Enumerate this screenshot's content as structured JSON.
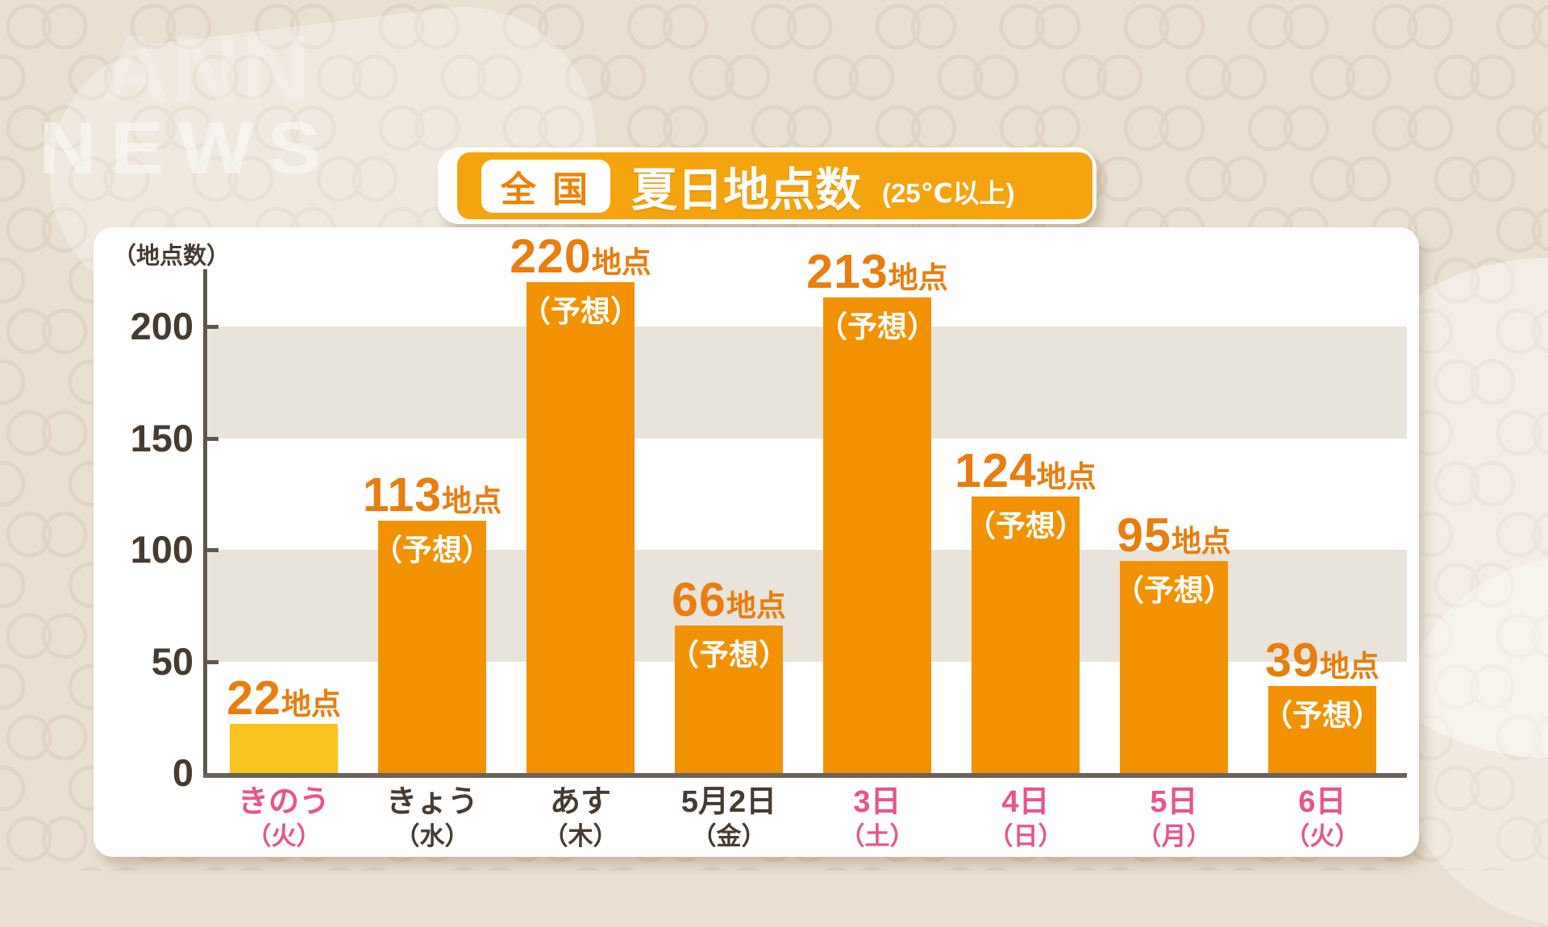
{
  "watermark": {
    "logo": "ANN",
    "news": "NEWS"
  },
  "header": {
    "badge_label": "全 国",
    "title": "夏日地点数",
    "subtitle": "(25℃以上)"
  },
  "colors": {
    "banner_orange": "#f5a40e",
    "badge_text_orange": "#ee8200",
    "bar_orange": "#f29200",
    "bar_yellow": "#f8c41d",
    "value_label_orange": "#e97d0e",
    "holiday_pink": "#e8538f",
    "weekday_dark": "#473b30",
    "band_gray": "#e9e4db",
    "axis_gray": "#6b635a"
  },
  "chart": {
    "unit_label": "（地点数）",
    "y_ticks": [
      200,
      150,
      100,
      50,
      0
    ],
    "value_suffix": "地点",
    "forecast_label": "（予想）"
  },
  "chart_data": {
    "type": "bar",
    "title": "全国 夏日地点数（25℃以上）",
    "ylabel": "地点数",
    "ylim": [
      0,
      230
    ],
    "grid": "alternating horizontal bands at 50-unit steps",
    "legend": "none",
    "categories": [
      "きのう（火）",
      "きょう（水）",
      "あす（木）",
      "5月2日（金）",
      "3日（土）",
      "4日（日）",
      "5日（月）",
      "6日（火）"
    ],
    "values": [
      22,
      113,
      220,
      66,
      213,
      124,
      95,
      39
    ],
    "bars": [
      {
        "day": "きのう",
        "weekday": "（火）",
        "value": 22,
        "forecast": false,
        "holiday": true,
        "bar_style": "yellow"
      },
      {
        "day": "きょう",
        "weekday": "（水）",
        "value": 113,
        "forecast": true,
        "holiday": false,
        "bar_style": "orange"
      },
      {
        "day": "あす",
        "weekday": "（木）",
        "value": 220,
        "forecast": true,
        "holiday": false,
        "bar_style": "orange"
      },
      {
        "day": "5月2日",
        "weekday": "（金）",
        "value": 66,
        "forecast": true,
        "holiday": false,
        "bar_style": "orange"
      },
      {
        "day": "3日",
        "weekday": "（土）",
        "value": 213,
        "forecast": true,
        "holiday": true,
        "bar_style": "orange"
      },
      {
        "day": "4日",
        "weekday": "（日）",
        "value": 124,
        "forecast": true,
        "holiday": true,
        "bar_style": "orange"
      },
      {
        "day": "5日",
        "weekday": "（月）",
        "value": 95,
        "forecast": true,
        "holiday": true,
        "bar_style": "orange"
      },
      {
        "day": "6日",
        "weekday": "（火）",
        "value": 39,
        "forecast": true,
        "holiday": true,
        "bar_style": "orange"
      }
    ]
  }
}
